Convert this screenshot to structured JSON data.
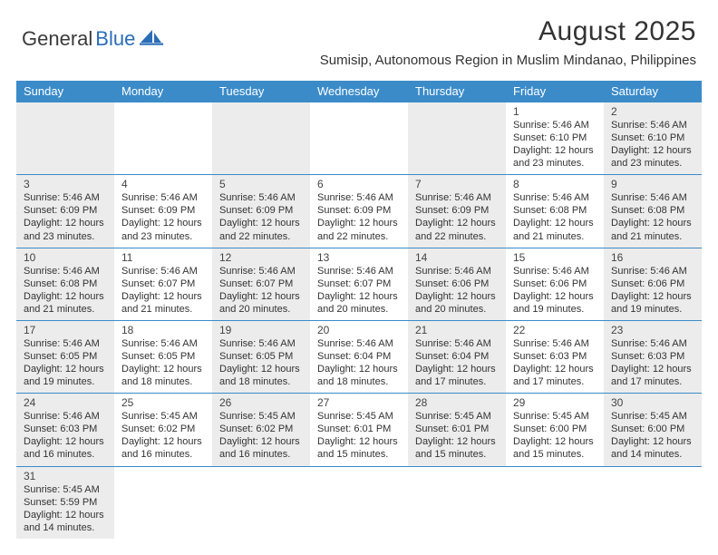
{
  "header": {
    "logo_general": "General",
    "logo_blue": "Blue",
    "month_title": "August 2025",
    "location": "Sumisip, Autonomous Region in Muslim Mindanao, Philippines"
  },
  "style": {
    "header_bg": "#3b8bc9",
    "header_text": "#ffffff",
    "shaded_bg": "#ececec",
    "row_border": "#3b8bc9",
    "logo_blue_color": "#2a6db8",
    "text_color": "#333333",
    "day_fontsize": 11,
    "daynum_fontsize": 12,
    "weekday_fontsize": 13,
    "title_fontsize": 30,
    "location_fontsize": 15
  },
  "weekdays": [
    "Sunday",
    "Monday",
    "Tuesday",
    "Wednesday",
    "Thursday",
    "Friday",
    "Saturday"
  ],
  "weeks": [
    [
      {
        "empty": true,
        "shaded": true
      },
      {
        "empty": true
      },
      {
        "empty": true,
        "shaded": true
      },
      {
        "empty": true
      },
      {
        "empty": true,
        "shaded": true
      },
      {
        "num": "1",
        "sunrise": "Sunrise: 5:46 AM",
        "sunset": "Sunset: 6:10 PM",
        "day1": "Daylight: 12 hours",
        "day2": "and 23 minutes."
      },
      {
        "num": "2",
        "shaded": true,
        "sunrise": "Sunrise: 5:46 AM",
        "sunset": "Sunset: 6:10 PM",
        "day1": "Daylight: 12 hours",
        "day2": "and 23 minutes."
      }
    ],
    [
      {
        "num": "3",
        "shaded": true,
        "sunrise": "Sunrise: 5:46 AM",
        "sunset": "Sunset: 6:09 PM",
        "day1": "Daylight: 12 hours",
        "day2": "and 23 minutes."
      },
      {
        "num": "4",
        "sunrise": "Sunrise: 5:46 AM",
        "sunset": "Sunset: 6:09 PM",
        "day1": "Daylight: 12 hours",
        "day2": "and 23 minutes."
      },
      {
        "num": "5",
        "shaded": true,
        "sunrise": "Sunrise: 5:46 AM",
        "sunset": "Sunset: 6:09 PM",
        "day1": "Daylight: 12 hours",
        "day2": "and 22 minutes."
      },
      {
        "num": "6",
        "sunrise": "Sunrise: 5:46 AM",
        "sunset": "Sunset: 6:09 PM",
        "day1": "Daylight: 12 hours",
        "day2": "and 22 minutes."
      },
      {
        "num": "7",
        "shaded": true,
        "sunrise": "Sunrise: 5:46 AM",
        "sunset": "Sunset: 6:09 PM",
        "day1": "Daylight: 12 hours",
        "day2": "and 22 minutes."
      },
      {
        "num": "8",
        "sunrise": "Sunrise: 5:46 AM",
        "sunset": "Sunset: 6:08 PM",
        "day1": "Daylight: 12 hours",
        "day2": "and 21 minutes."
      },
      {
        "num": "9",
        "shaded": true,
        "sunrise": "Sunrise: 5:46 AM",
        "sunset": "Sunset: 6:08 PM",
        "day1": "Daylight: 12 hours",
        "day2": "and 21 minutes."
      }
    ],
    [
      {
        "num": "10",
        "shaded": true,
        "sunrise": "Sunrise: 5:46 AM",
        "sunset": "Sunset: 6:08 PM",
        "day1": "Daylight: 12 hours",
        "day2": "and 21 minutes."
      },
      {
        "num": "11",
        "sunrise": "Sunrise: 5:46 AM",
        "sunset": "Sunset: 6:07 PM",
        "day1": "Daylight: 12 hours",
        "day2": "and 21 minutes."
      },
      {
        "num": "12",
        "shaded": true,
        "sunrise": "Sunrise: 5:46 AM",
        "sunset": "Sunset: 6:07 PM",
        "day1": "Daylight: 12 hours",
        "day2": "and 20 minutes."
      },
      {
        "num": "13",
        "sunrise": "Sunrise: 5:46 AM",
        "sunset": "Sunset: 6:07 PM",
        "day1": "Daylight: 12 hours",
        "day2": "and 20 minutes."
      },
      {
        "num": "14",
        "shaded": true,
        "sunrise": "Sunrise: 5:46 AM",
        "sunset": "Sunset: 6:06 PM",
        "day1": "Daylight: 12 hours",
        "day2": "and 20 minutes."
      },
      {
        "num": "15",
        "sunrise": "Sunrise: 5:46 AM",
        "sunset": "Sunset: 6:06 PM",
        "day1": "Daylight: 12 hours",
        "day2": "and 19 minutes."
      },
      {
        "num": "16",
        "shaded": true,
        "sunrise": "Sunrise: 5:46 AM",
        "sunset": "Sunset: 6:06 PM",
        "day1": "Daylight: 12 hours",
        "day2": "and 19 minutes."
      }
    ],
    [
      {
        "num": "17",
        "shaded": true,
        "sunrise": "Sunrise: 5:46 AM",
        "sunset": "Sunset: 6:05 PM",
        "day1": "Daylight: 12 hours",
        "day2": "and 19 minutes."
      },
      {
        "num": "18",
        "sunrise": "Sunrise: 5:46 AM",
        "sunset": "Sunset: 6:05 PM",
        "day1": "Daylight: 12 hours",
        "day2": "and 18 minutes."
      },
      {
        "num": "19",
        "shaded": true,
        "sunrise": "Sunrise: 5:46 AM",
        "sunset": "Sunset: 6:05 PM",
        "day1": "Daylight: 12 hours",
        "day2": "and 18 minutes."
      },
      {
        "num": "20",
        "sunrise": "Sunrise: 5:46 AM",
        "sunset": "Sunset: 6:04 PM",
        "day1": "Daylight: 12 hours",
        "day2": "and 18 minutes."
      },
      {
        "num": "21",
        "shaded": true,
        "sunrise": "Sunrise: 5:46 AM",
        "sunset": "Sunset: 6:04 PM",
        "day1": "Daylight: 12 hours",
        "day2": "and 17 minutes."
      },
      {
        "num": "22",
        "sunrise": "Sunrise: 5:46 AM",
        "sunset": "Sunset: 6:03 PM",
        "day1": "Daylight: 12 hours",
        "day2": "and 17 minutes."
      },
      {
        "num": "23",
        "shaded": true,
        "sunrise": "Sunrise: 5:46 AM",
        "sunset": "Sunset: 6:03 PM",
        "day1": "Daylight: 12 hours",
        "day2": "and 17 minutes."
      }
    ],
    [
      {
        "num": "24",
        "shaded": true,
        "sunrise": "Sunrise: 5:46 AM",
        "sunset": "Sunset: 6:03 PM",
        "day1": "Daylight: 12 hours",
        "day2": "and 16 minutes."
      },
      {
        "num": "25",
        "sunrise": "Sunrise: 5:45 AM",
        "sunset": "Sunset: 6:02 PM",
        "day1": "Daylight: 12 hours",
        "day2": "and 16 minutes."
      },
      {
        "num": "26",
        "shaded": true,
        "sunrise": "Sunrise: 5:45 AM",
        "sunset": "Sunset: 6:02 PM",
        "day1": "Daylight: 12 hours",
        "day2": "and 16 minutes."
      },
      {
        "num": "27",
        "sunrise": "Sunrise: 5:45 AM",
        "sunset": "Sunset: 6:01 PM",
        "day1": "Daylight: 12 hours",
        "day2": "and 15 minutes."
      },
      {
        "num": "28",
        "shaded": true,
        "sunrise": "Sunrise: 5:45 AM",
        "sunset": "Sunset: 6:01 PM",
        "day1": "Daylight: 12 hours",
        "day2": "and 15 minutes."
      },
      {
        "num": "29",
        "sunrise": "Sunrise: 5:45 AM",
        "sunset": "Sunset: 6:00 PM",
        "day1": "Daylight: 12 hours",
        "day2": "and 15 minutes."
      },
      {
        "num": "30",
        "shaded": true,
        "sunrise": "Sunrise: 5:45 AM",
        "sunset": "Sunset: 6:00 PM",
        "day1": "Daylight: 12 hours",
        "day2": "and 14 minutes."
      }
    ],
    [
      {
        "num": "31",
        "shaded": true,
        "sunrise": "Sunrise: 5:45 AM",
        "sunset": "Sunset: 5:59 PM",
        "day1": "Daylight: 12 hours",
        "day2": "and 14 minutes."
      },
      {
        "empty": true
      },
      {
        "empty": true
      },
      {
        "empty": true
      },
      {
        "empty": true
      },
      {
        "empty": true
      },
      {
        "empty": true
      }
    ]
  ]
}
